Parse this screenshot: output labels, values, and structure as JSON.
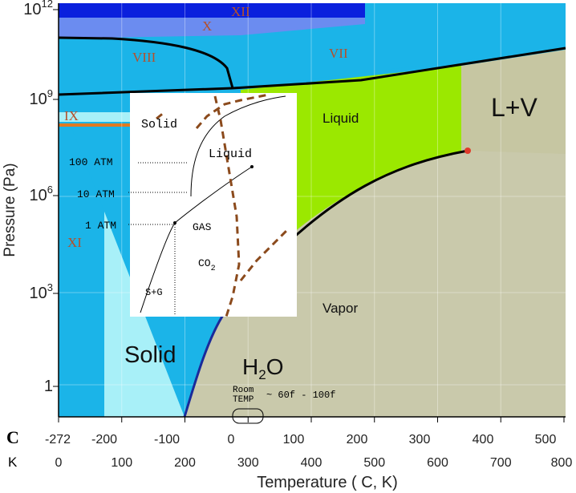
{
  "y_axis": {
    "title": "Pressure (Pa)",
    "ticks": [
      {
        "base": "10",
        "exponent": "12"
      },
      {
        "base": "10",
        "exponent": "9"
      },
      {
        "base": "10",
        "exponent": "6"
      },
      {
        "base": "10",
        "exponent": "3"
      },
      {
        "base": "1"
      }
    ]
  },
  "x_axis": {
    "title": "Temperature ( C, K)"
  },
  "celsius_row": {
    "unit": "C",
    "ticks": [
      "-272",
      "-200",
      "-100",
      "0",
      "100",
      "200",
      "300",
      "400",
      "500"
    ]
  },
  "kelvin_row": {
    "unit": "K",
    "ticks": [
      "0",
      "100",
      "200",
      "300",
      "400",
      "500",
      "600",
      "700",
      "800"
    ]
  },
  "regions": {
    "xii": "XII",
    "x": "X",
    "viii": "VIII",
    "vii": "VII",
    "ix": "IX",
    "xi": "XI",
    "liquid": "Liquid",
    "l_v": "L+V",
    "vapor": "Vapor",
    "solid": "Solid"
  },
  "h2o": {
    "h": "H",
    "sub": "2",
    "o": "O"
  },
  "room_temp": {
    "line1": "Room",
    "line2": "TEMP",
    "range": "~ 60f - 100f"
  },
  "inset": {
    "solid": "Solid",
    "liquid": "Liquid",
    "atm100": "100 ATM",
    "atm10": "10 ATM",
    "atm1": "1 ATM",
    "gas": "GAS",
    "co": "CO",
    "sub": "2",
    "sg": "S+G"
  }
}
